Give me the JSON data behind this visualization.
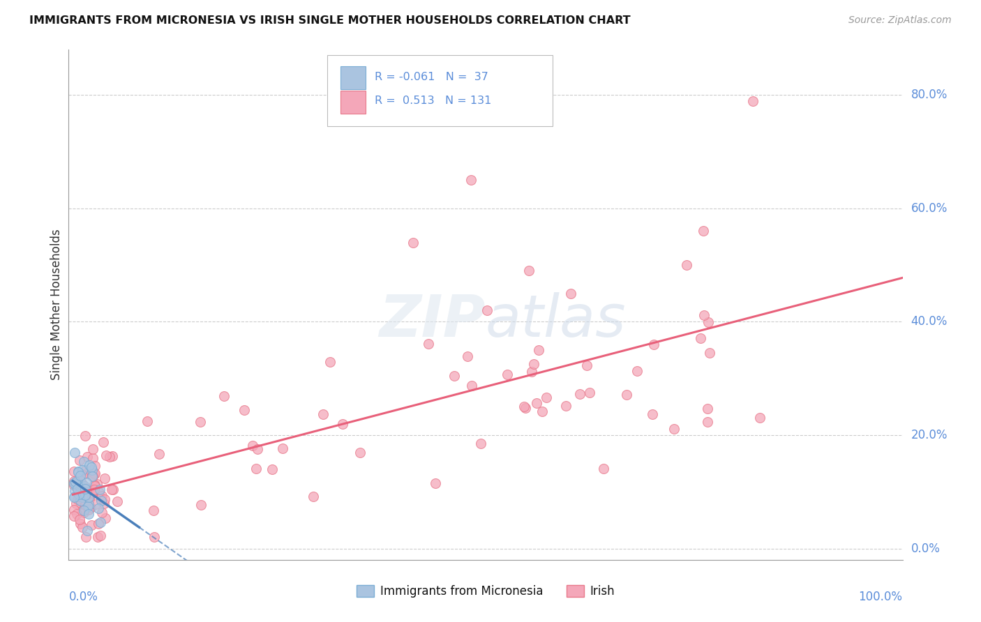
{
  "title": "IMMIGRANTS FROM MICRONESIA VS IRISH SINGLE MOTHER HOUSEHOLDS CORRELATION CHART",
  "source": "Source: ZipAtlas.com",
  "ylabel": "Single Mother Households",
  "right_yticks": [
    "0.0%",
    "20.0%",
    "40.0%",
    "60.0%",
    "80.0%"
  ],
  "right_ytick_vals": [
    0.0,
    0.2,
    0.4,
    0.6,
    0.8
  ],
  "legend_micronesia_label": "Immigrants from Micronesia",
  "legend_irish_label": "Irish",
  "color_micronesia_fill": "#aac4e0",
  "color_micronesia_edge": "#7aadd4",
  "color_irish_fill": "#f4a7b9",
  "color_irish_edge": "#e8788a",
  "color_line_micronesia": "#4a7fba",
  "color_line_irish": "#e8607a",
  "color_text_blue": "#5b8dd9",
  "background_color": "#ffffff",
  "ylim_max": 0.88,
  "xlim_max": 1.0
}
